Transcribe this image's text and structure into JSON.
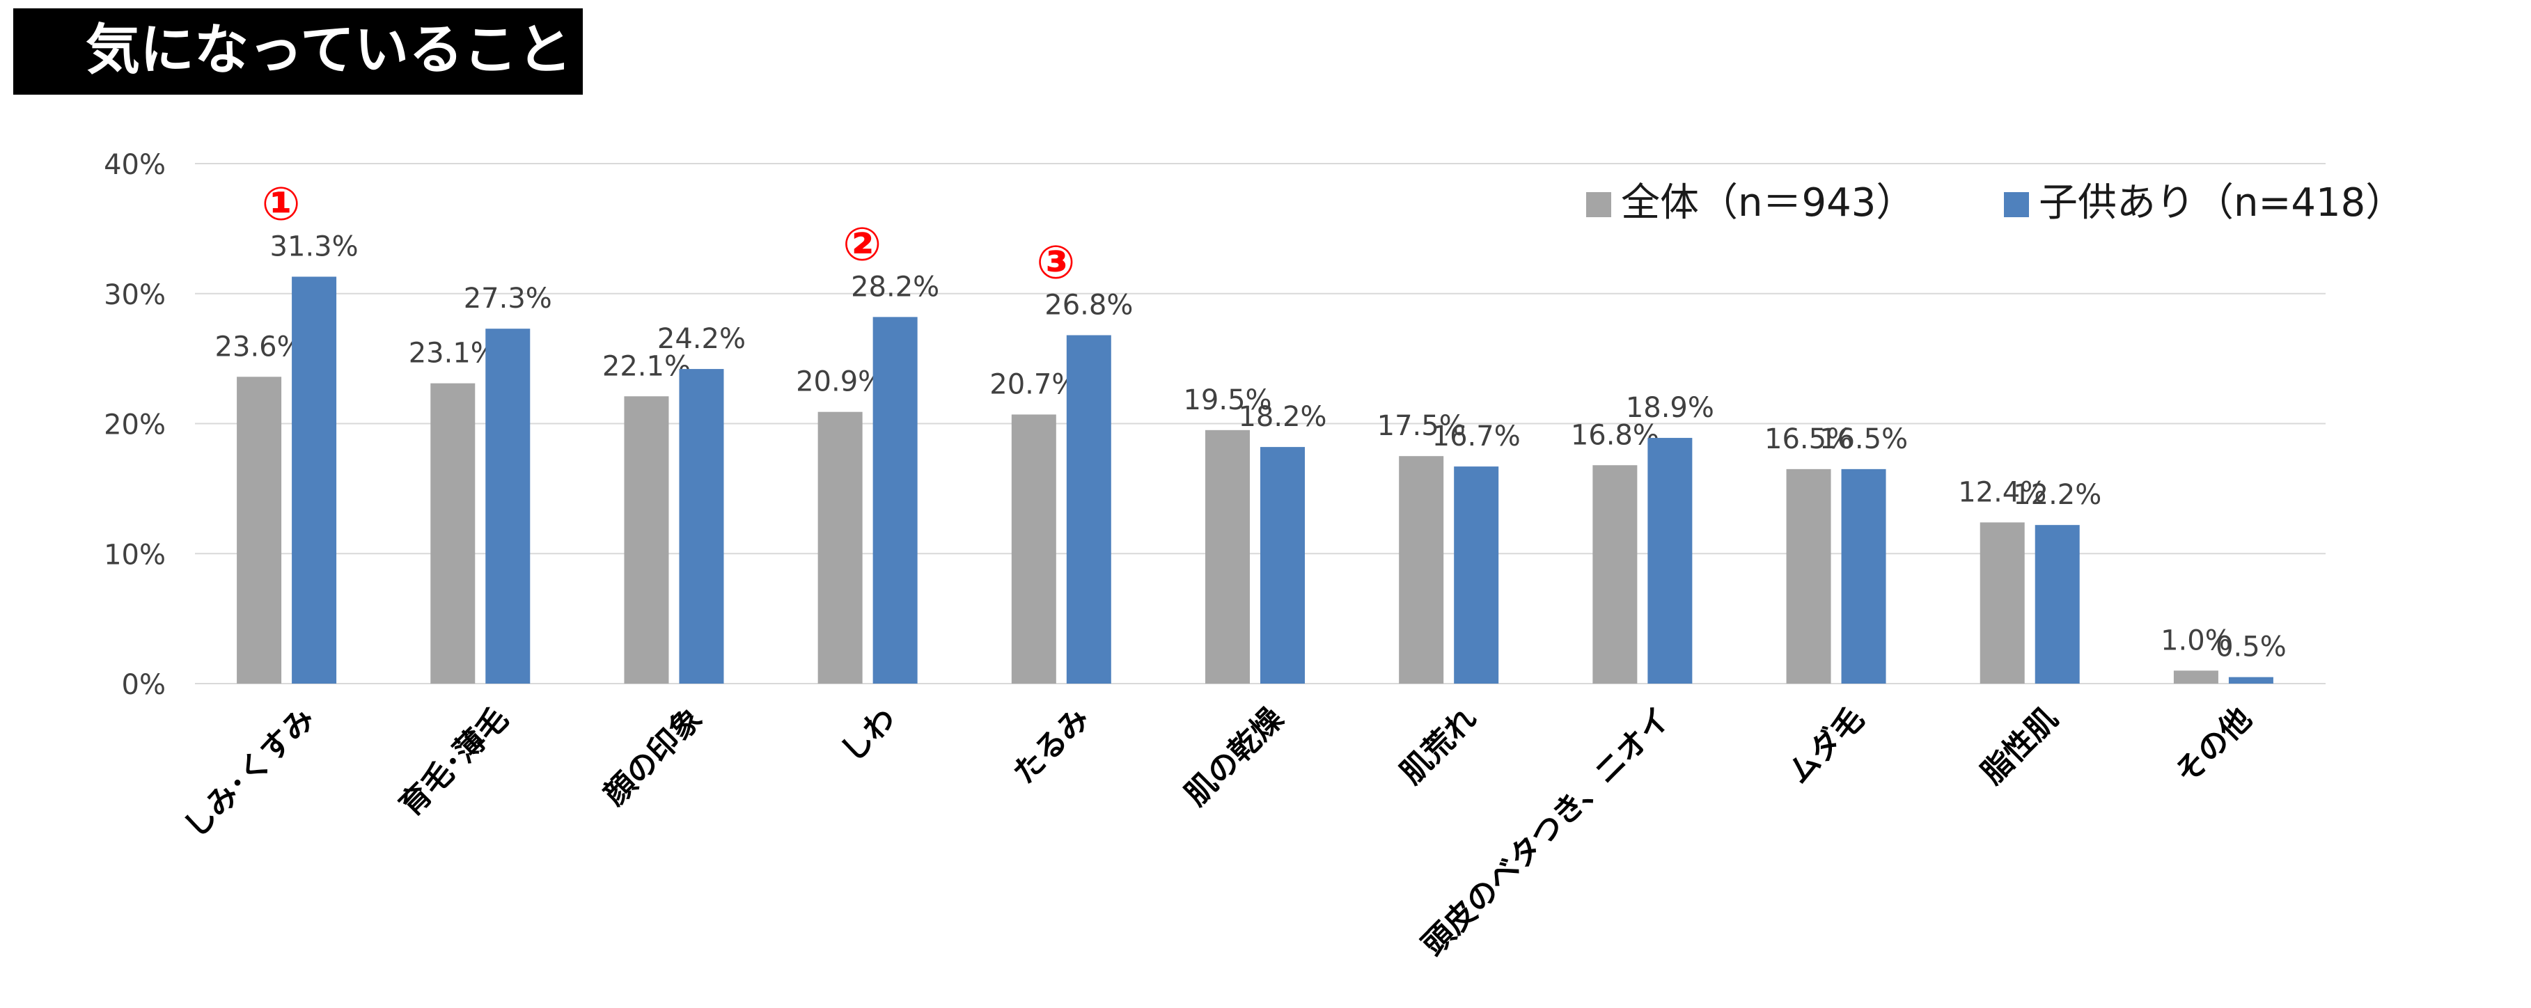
{
  "header": {
    "title": "気になっていること"
  },
  "colors": {
    "all": "#a5a5a5",
    "children": "#4f81bd",
    "rank_marker": "#ff0000",
    "grid": "#d9d9d9",
    "axis_text": "#404040"
  },
  "chart_data": {
    "type": "bar",
    "title": "",
    "xlabel": "",
    "ylabel": "",
    "ylim": [
      0,
      40
    ],
    "yticks": [
      "0%",
      "10%",
      "20%",
      "30%",
      "40%"
    ],
    "grid": true,
    "legend_position": "top-right",
    "categories": [
      "しみ･くすみ",
      "育毛･薄毛",
      "顔の印象",
      "しわ",
      "たるみ",
      "肌の乾燥",
      "肌荒れ",
      "頭皮のベタつき、ニオイ",
      "ムダ毛",
      "脂性肌",
      "その他"
    ],
    "series": [
      {
        "name": "全体（n＝943）",
        "values": [
          23.6,
          23.1,
          22.1,
          20.9,
          20.7,
          19.5,
          17.5,
          16.8,
          16.5,
          12.4,
          1.0
        ],
        "labels": [
          "23.6%",
          "23.1%",
          "22.1%",
          "20.9%",
          "20.7%",
          "19.5%",
          "17.5%",
          "16.8%",
          "16.5%",
          "12.4%",
          "1.0%"
        ]
      },
      {
        "name": "子供あり（n=418）",
        "values": [
          31.3,
          27.3,
          24.2,
          28.2,
          26.8,
          18.2,
          16.7,
          18.9,
          16.5,
          12.2,
          0.5
        ],
        "labels": [
          "31.3%",
          "27.3%",
          "24.2%",
          "28.2%",
          "26.8%",
          "18.2%",
          "16.7%",
          "18.9%",
          "16.5%",
          "12.2%",
          "0.5%"
        ]
      }
    ],
    "annotations": [
      {
        "text": "①",
        "category_index": 0
      },
      {
        "text": "②",
        "category_index": 3
      },
      {
        "text": "③",
        "category_index": 4
      }
    ]
  }
}
